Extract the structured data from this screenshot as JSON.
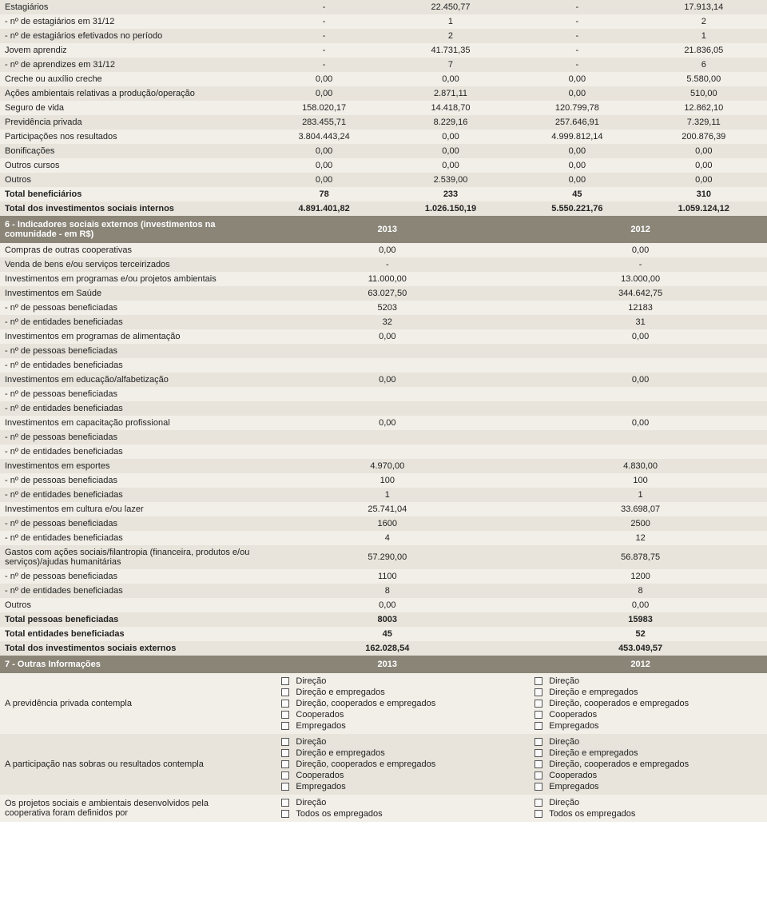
{
  "colors": {
    "row_a": "#e8e4db",
    "row_b": "#f2efe8",
    "section_head_bg": "#8a8577",
    "section_head_fg": "#ffffff",
    "text": "#222222"
  },
  "table1": {
    "rows": [
      {
        "label": "Estagiários",
        "c1": "-",
        "c2": "22.450,77",
        "c3": "-",
        "c4": "17.913,14"
      },
      {
        "label": "- nº de estagiários em 31/12",
        "c1": "-",
        "c2": "1",
        "c3": "-",
        "c4": "2"
      },
      {
        "label": "- nº de estagiários efetivados no período",
        "c1": "-",
        "c2": "2",
        "c3": "-",
        "c4": "1"
      },
      {
        "label": "Jovem aprendiz",
        "c1": "-",
        "c2": "41.731,35",
        "c3": "-",
        "c4": "21.836,05"
      },
      {
        "label": "- nº de aprendizes em 31/12",
        "c1": "-",
        "c2": "7",
        "c3": "-",
        "c4": "6"
      },
      {
        "label": "Creche ou auxílio creche",
        "c1": "0,00",
        "c2": "0,00",
        "c3": "0,00",
        "c4": "5.580,00"
      },
      {
        "label": "Ações ambientais relativas a produção/operação",
        "c1": "0,00",
        "c2": "2.871,11",
        "c3": "0,00",
        "c4": "510,00"
      },
      {
        "label": "Seguro de vida",
        "c1": "158.020,17",
        "c2": "14.418,70",
        "c3": "120.799,78",
        "c4": "12.862,10"
      },
      {
        "label": "Previdência privada",
        "c1": "283.455,71",
        "c2": "8.229,16",
        "c3": "257.646,91",
        "c4": "7.329,11"
      },
      {
        "label": "Participações nos resultados",
        "c1": "3.804.443,24",
        "c2": "0,00",
        "c3": "4.999.812,14",
        "c4": "200.876,39"
      },
      {
        "label": "Bonificações",
        "c1": "0,00",
        "c2": "0,00",
        "c3": "0,00",
        "c4": "0,00"
      },
      {
        "label": "Outros cursos",
        "c1": "0,00",
        "c2": "0,00",
        "c3": "0,00",
        "c4": "0,00"
      },
      {
        "label": "Outros",
        "c1": "0,00",
        "c2": "2.539,00",
        "c3": "0,00",
        "c4": "0,00"
      },
      {
        "label": "Total beneficiários",
        "c1": "78",
        "c2": "233",
        "c3": "45",
        "c4": "310",
        "bold": true
      },
      {
        "label": "Total dos investimentos sociais internos",
        "c1": "4.891.401,82",
        "c2": "1.026.150,19",
        "c3": "5.550.221,76",
        "c4": "1.059.124,12",
        "bold": true
      }
    ]
  },
  "section6": {
    "title": "6 - Indicadores sociais externos (investimentos na comunidade - em R$)",
    "year_left": "2013",
    "year_right": "2012",
    "rows": [
      {
        "label": "Compras de outras cooperativas",
        "c1": "0,00",
        "c2": "0,00"
      },
      {
        "label": "Venda de bens e/ou serviços terceirizados",
        "c1": "-",
        "c2": "-"
      },
      {
        "label": "Investimentos em programas e/ou projetos ambientais",
        "c1": "11.000,00",
        "c2": "13.000,00"
      },
      {
        "label": "Investimentos em Saúde",
        "c1": "63.027,50",
        "c2": "344.642,75"
      },
      {
        "label": "- nº de pessoas beneficiadas",
        "c1": "5203",
        "c2": "12183"
      },
      {
        "label": "- nº de entidades beneficiadas",
        "c1": "32",
        "c2": "31"
      },
      {
        "label": "Investimentos em programas de alimentação",
        "c1": "0,00",
        "c2": "0,00"
      },
      {
        "label": "- nº de pessoas beneficiadas",
        "c1": "",
        "c2": ""
      },
      {
        "label": "- nº de entidades beneficiadas",
        "c1": "",
        "c2": ""
      },
      {
        "label": "Investimentos em educação/alfabetização",
        "c1": "0,00",
        "c2": "0,00"
      },
      {
        "label": "- nº de pessoas beneficiadas",
        "c1": "",
        "c2": ""
      },
      {
        "label": "- nº de entidades beneficiadas",
        "c1": "",
        "c2": ""
      },
      {
        "label": "Investimentos em capacitação profissional",
        "c1": "0,00",
        "c2": "0,00"
      },
      {
        "label": "- nº de pessoas beneficiadas",
        "c1": "",
        "c2": ""
      },
      {
        "label": "- nº de entidades beneficiadas",
        "c1": "",
        "c2": ""
      },
      {
        "label": "Investimentos em esportes",
        "c1": "4.970,00",
        "c2": "4.830,00"
      },
      {
        "label": "- nº de pessoas beneficiadas",
        "c1": "100",
        "c2": "100"
      },
      {
        "label": "- nº de entidades beneficiadas",
        "c1": "1",
        "c2": "1"
      },
      {
        "label": "Investimentos em cultura e/ou lazer",
        "c1": "25.741,04",
        "c2": "33.698,07"
      },
      {
        "label": "- nº de pessoas beneficiadas",
        "c1": "1600",
        "c2": "2500"
      },
      {
        "label": "- nº de entidades beneficiadas",
        "c1": "4",
        "c2": "12"
      },
      {
        "label": "Gastos com ações sociais/filantropia (financeira, produtos e/ou serviços)/ajudas humanitárias",
        "c1": "57.290,00",
        "c2": "56.878,75"
      },
      {
        "label": "- nº de pessoas beneficiadas",
        "c1": "1100",
        "c2": "1200"
      },
      {
        "label": "- nº de entidades beneficiadas",
        "c1": "8",
        "c2": "8"
      },
      {
        "label": "Outros",
        "c1": "0,00",
        "c2": "0,00"
      },
      {
        "label": "Total pessoas beneficiadas",
        "c1": "8003",
        "c2": "15983",
        "bold": true
      },
      {
        "label": "Total entidades beneficiadas",
        "c1": "45",
        "c2": "52",
        "bold": true
      },
      {
        "label": "Total dos investimentos sociais externos",
        "c1": "162.028,54",
        "c2": "453.049,57",
        "bold": true
      }
    ]
  },
  "section7": {
    "title": "7 - Outras Informações",
    "year_left": "2013",
    "year_right": "2012",
    "rows": [
      {
        "label": "A previdência privada contempla",
        "options_left": [
          "Direção",
          "Direção e empregados",
          "Direção, cooperados e empregados",
          "Cooperados",
          "Empregados"
        ],
        "options_right": [
          "Direção",
          "Direção e empregados",
          "Direção, cooperados e empregados",
          "Cooperados",
          "Empregados"
        ]
      },
      {
        "label": "A participação nas sobras ou resultados contempla",
        "options_left": [
          "Direção",
          "Direção e empregados",
          "Direção, cooperados e empregados",
          "Cooperados",
          "Empregados"
        ],
        "options_right": [
          "Direção",
          "Direção e empregados",
          "Direção, cooperados e empregados",
          "Cooperados",
          "Empregados"
        ]
      },
      {
        "label": "Os projetos sociais e ambientais desenvolvidos pela cooperativa foram definidos por",
        "options_left": [
          "Direção",
          "Todos os empregados"
        ],
        "options_right": [
          "Direção",
          "Todos os empregados"
        ]
      }
    ]
  }
}
